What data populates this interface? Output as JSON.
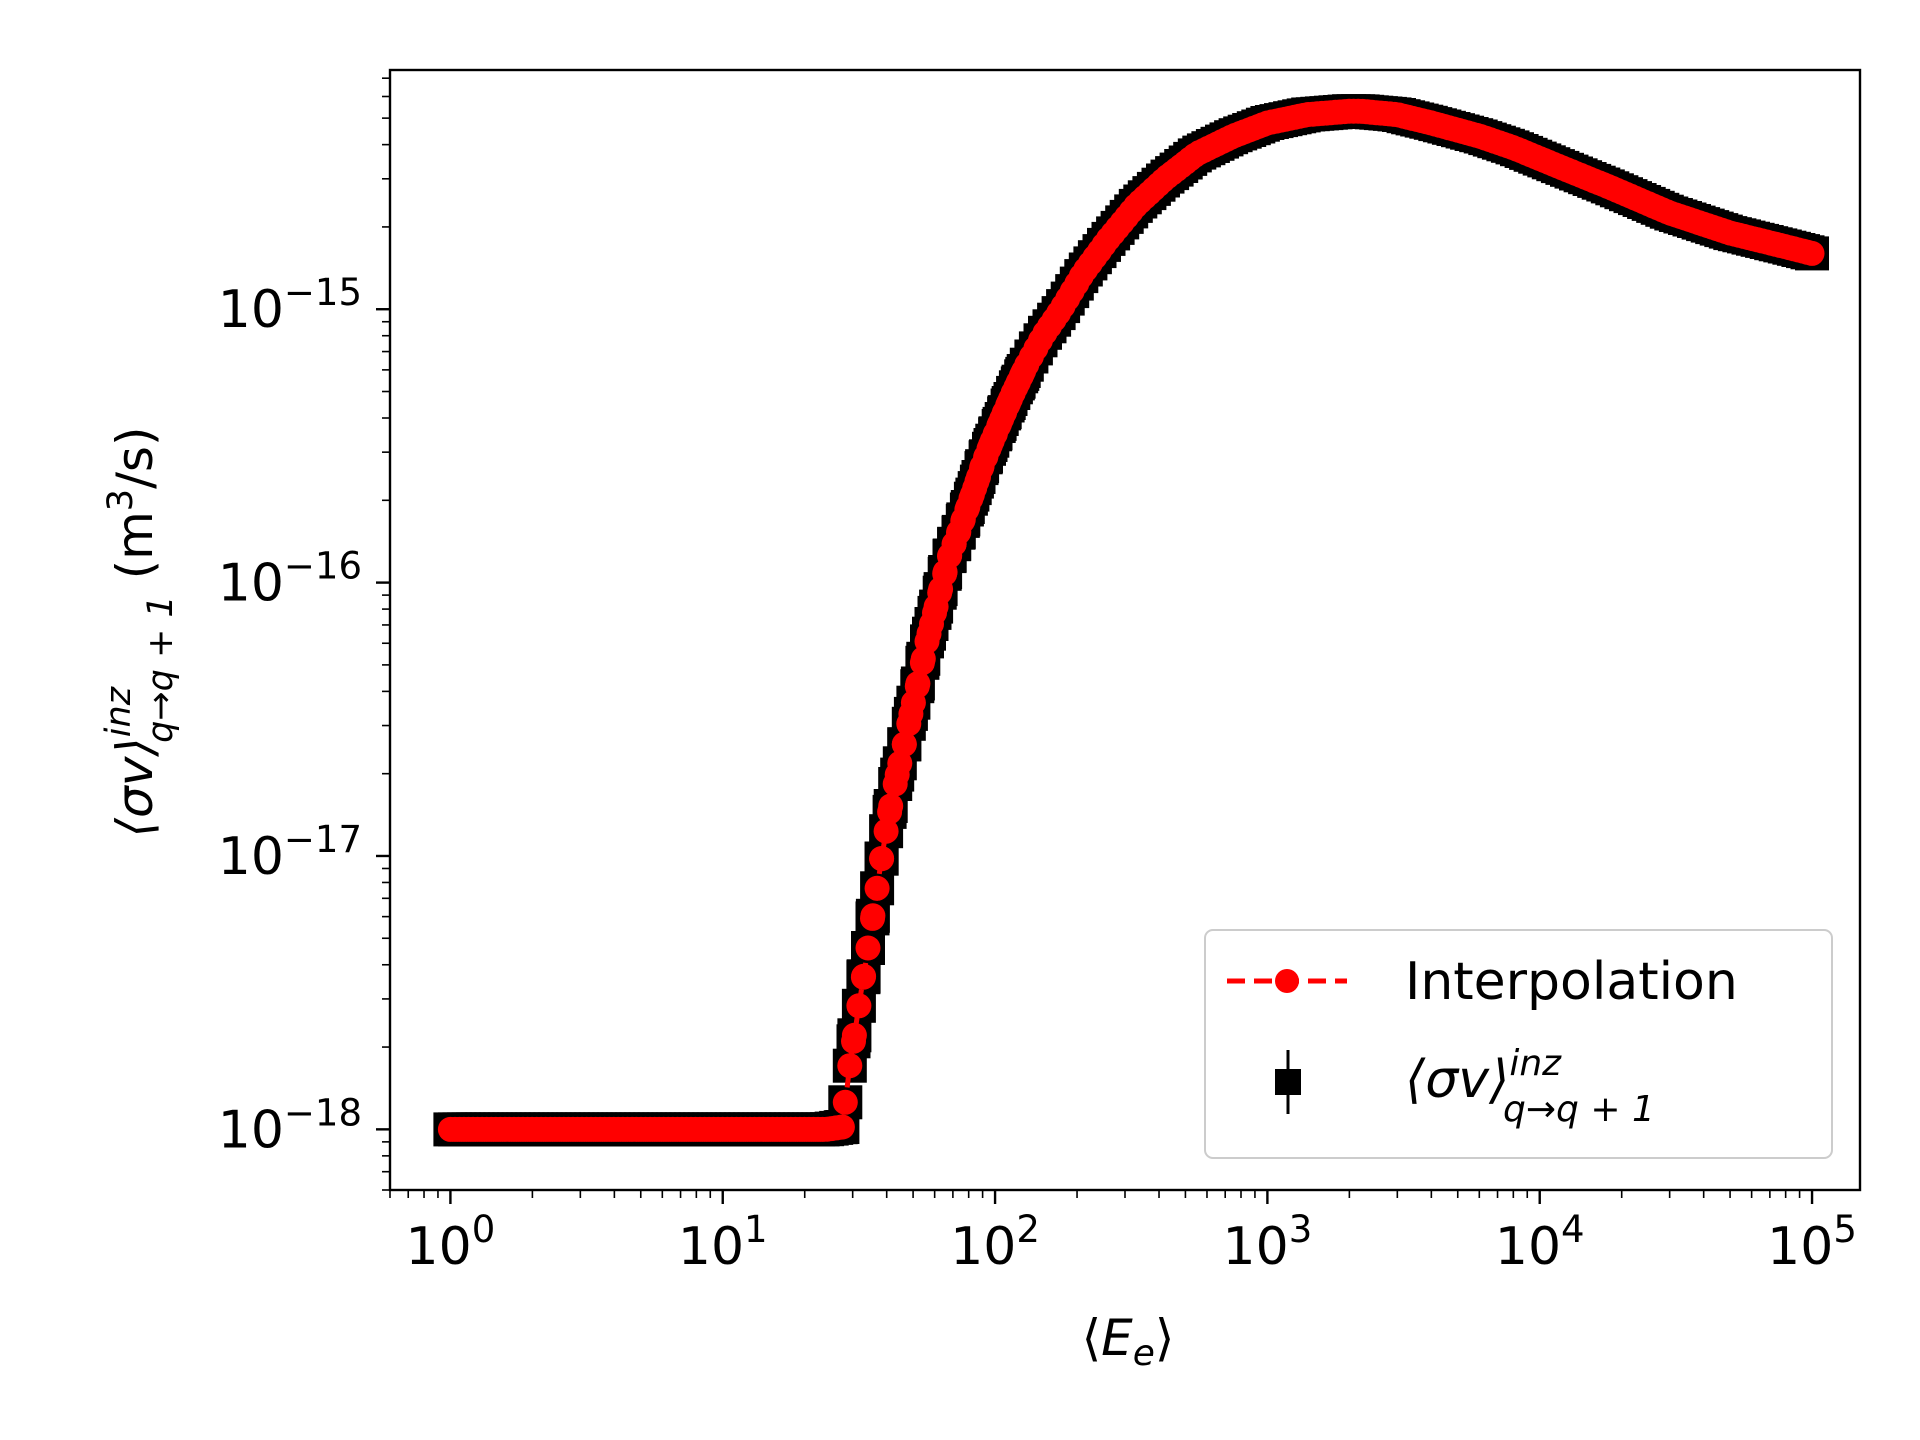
{
  "chart_data": {
    "type": "scatter",
    "xscale": "log",
    "yscale": "log",
    "xlim": [
      0.6,
      150000
    ],
    "ylim": [
      6e-19,
      7.5e-15
    ],
    "x_ticks": [
      {
        "value": 1,
        "base": "10",
        "exp": "0"
      },
      {
        "value": 10,
        "base": "10",
        "exp": "1"
      },
      {
        "value": 100,
        "base": "10",
        "exp": "2"
      },
      {
        "value": 1000,
        "base": "10",
        "exp": "3"
      },
      {
        "value": 10000,
        "base": "10",
        "exp": "4"
      },
      {
        "value": 100000,
        "base": "10",
        "exp": "5"
      }
    ],
    "y_ticks": [
      {
        "value": 1e-18,
        "base": "10",
        "exp": "−18"
      },
      {
        "value": 1e-17,
        "base": "10",
        "exp": "−17"
      },
      {
        "value": 1e-16,
        "base": "10",
        "exp": "−16"
      },
      {
        "value": 1e-15,
        "base": "10",
        "exp": "−15"
      }
    ],
    "xlabel": {
      "pre": "⟨",
      "main": "E",
      "sub": "e",
      "post": "⟩"
    },
    "ylabel": {
      "main": "⟨σv⟩",
      "sup": "inz",
      "sub": "q→q + 1",
      "unit_pre": " (m",
      "unit_sup": "3",
      "unit_post": "/s)"
    },
    "grid": false,
    "legend_position": "lower-right",
    "series": [
      {
        "name": "Interpolation",
        "kind": "line-dashed-markers",
        "color": "#ff0000",
        "x": [
          1,
          1.5,
          2,
          3,
          5,
          8,
          12,
          18,
          24,
          27.5,
          29,
          31,
          33,
          35,
          37,
          39,
          41.5,
          44,
          47,
          50,
          53,
          56,
          60,
          64,
          68,
          73,
          78,
          84,
          90,
          97,
          105,
          115,
          130,
          150,
          175,
          210,
          260,
          330,
          420,
          550,
          750,
          1000,
          1400,
          2000,
          2200,
          3000,
          4000,
          6000,
          8000,
          12000,
          18000,
          30000,
          50000,
          75000,
          100000
        ],
        "y": [
          1e-18,
          1e-18,
          1e-18,
          1e-18,
          1e-18,
          1e-18,
          1e-18,
          1e-18,
          1e-18,
          1.02e-18,
          1.6e-18,
          2.5e-18,
          3.7e-18,
          5.4e-18,
          7.8e-18,
          1.1e-17,
          1.55e-17,
          2.05e-17,
          2.7e-17,
          3.6e-17,
          4.6e-17,
          6e-17,
          7.8e-17,
          1e-16,
          1.25e-16,
          1.5e-16,
          1.8e-16,
          2.2e-16,
          2.7e-16,
          3.25e-16,
          3.9e-16,
          4.8e-16,
          6.2e-16,
          8e-16,
          1e-15,
          1.35e-15,
          1.8e-15,
          2.4e-15,
          3e-15,
          3.7e-15,
          4.3e-15,
          4.8e-15,
          5.15e-15,
          5.3e-15,
          5.3e-15,
          5.15e-15,
          4.8e-15,
          4.3e-15,
          3.9e-15,
          3.3e-15,
          2.8e-15,
          2.25e-15,
          1.9e-15,
          1.72e-15,
          1.6e-15
        ]
      },
      {
        "name": {
          "main": "⟨σv⟩",
          "sup": "inz",
          "sub": "q→q + 1"
        },
        "kind": "errorbar-squares",
        "color": "#000000"
      }
    ]
  }
}
